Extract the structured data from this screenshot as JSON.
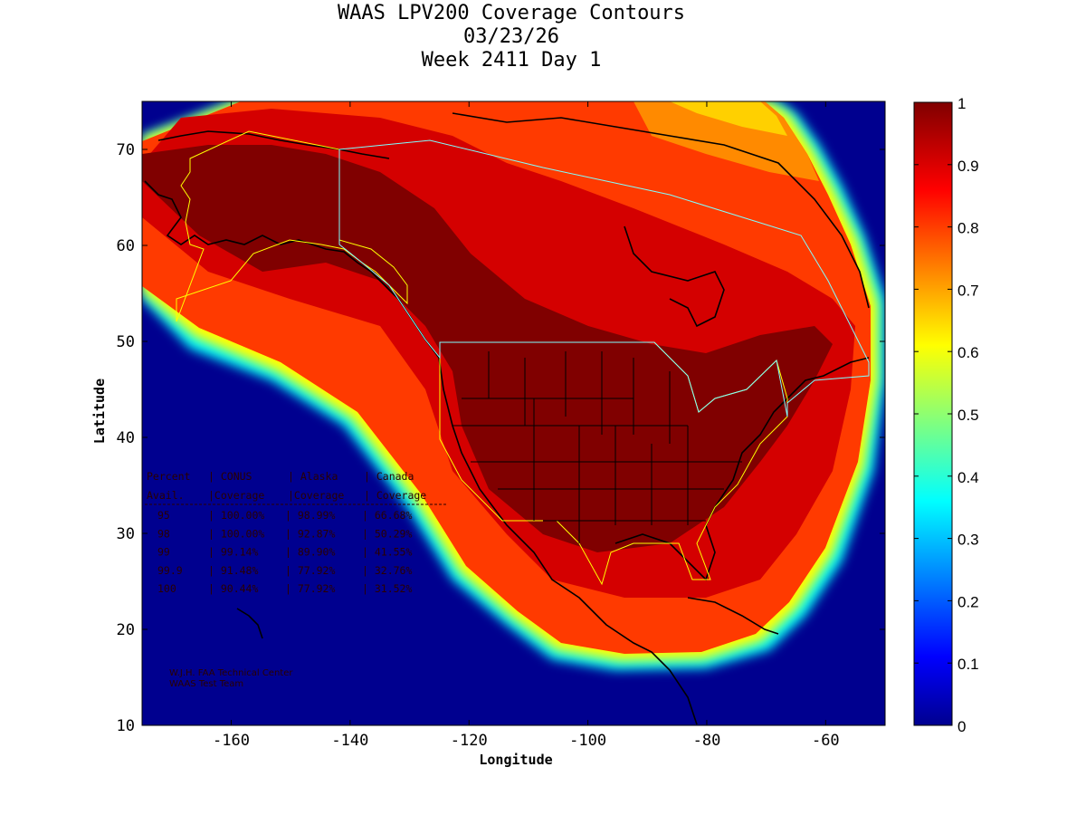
{
  "title": {
    "line1": "WAAS LPV200 Coverage Contours",
    "line2": "03/23/26",
    "line3": "Week 2411 Day 1"
  },
  "axes": {
    "xlabel": "Longitude",
    "ylabel": "Latitude",
    "xticks": [
      "-160",
      "-140",
      "-120",
      "-100",
      "-80",
      "-60"
    ],
    "xtick_values": [
      -160,
      -140,
      -120,
      -100,
      -80,
      -60
    ],
    "yticks": [
      "10",
      "20",
      "30",
      "40",
      "50",
      "60",
      "70"
    ],
    "ytick_values": [
      10,
      20,
      30,
      40,
      50,
      60,
      70
    ],
    "xlim": [
      -175,
      -50
    ],
    "ylim": [
      10,
      75
    ]
  },
  "colorbar": {
    "ticks": [
      "0",
      "0.1",
      "0.2",
      "0.3",
      "0.4",
      "0.5",
      "0.6",
      "0.7",
      "0.8",
      "0.9",
      "1"
    ],
    "tick_values": [
      0,
      0.1,
      0.2,
      0.3,
      0.4,
      0.5,
      0.6,
      0.7,
      0.8,
      0.9,
      1
    ],
    "range": [
      0,
      1
    ],
    "colormap": "jet"
  },
  "stats_table": {
    "header1": [
      "Percent",
      "CONUS",
      "Alaska",
      "Canada"
    ],
    "header2": [
      "Avail.",
      "Coverage",
      "Coverage",
      "Coverage"
    ],
    "rows": [
      [
        "95",
        "100.00%",
        "98.99%",
        "66.68%"
      ],
      [
        "98",
        "100.00%",
        "92.87%",
        "50.29%"
      ],
      [
        "99",
        "99.14%",
        "89.90%",
        "41.55%"
      ],
      [
        "99.9",
        "91.48%",
        "77.92%",
        "32.76%"
      ],
      [
        "100",
        "90.44%",
        "77.92%",
        "31.52%"
      ]
    ]
  },
  "credits": {
    "line1": "W.J.H. FAA Technical Center",
    "line2": "WAAS Test Team"
  },
  "colors": {
    "ocean_low": "#00008f",
    "high": "#800000",
    "conus_outline": "#ffff00",
    "canada_outline": "#7fffff"
  }
}
